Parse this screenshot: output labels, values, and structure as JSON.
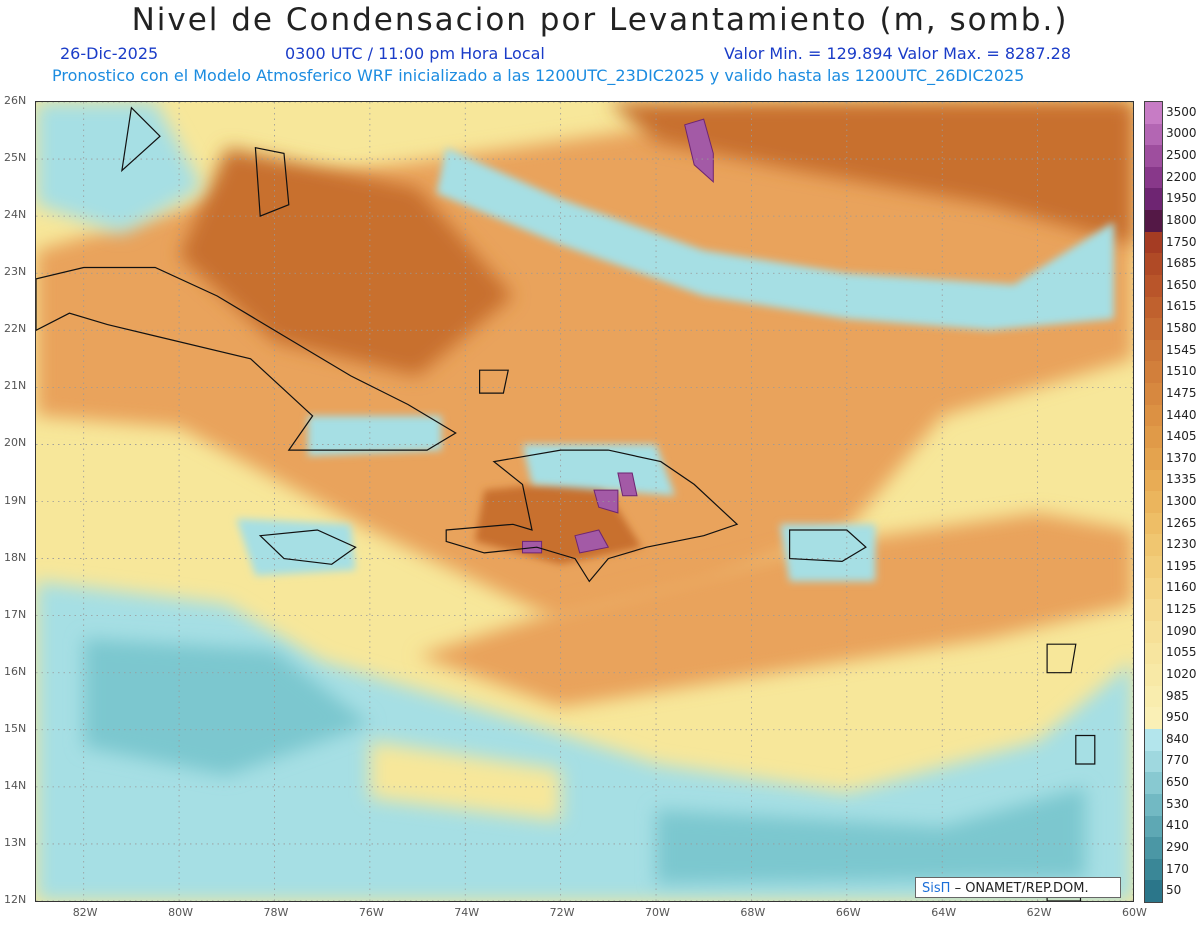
{
  "header": {
    "title": "Nivel de Condensacion por Levantamiento (m, somb.)",
    "date": "26-Dic-2025",
    "time": "0300 UTC / 11:00 pm Hora Local",
    "min_max": "Valor Min. = 129.894  Valor Max. = 8287.28",
    "model_info": "Pronostico con el Modelo Atmosferico WRF inicializado a las 1200UTC_23DIC2025 y valido hasta las  1200UTC_26DIC2025"
  },
  "map": {
    "lat_labels": [
      "26N",
      "25N",
      "24N",
      "23N",
      "22N",
      "21N",
      "20N",
      "19N",
      "18N",
      "17N",
      "16N",
      "15N",
      "14N",
      "13N",
      "12N"
    ],
    "lon_labels": [
      "82W",
      "80W",
      "78W",
      "76W",
      "74W",
      "72W",
      "70W",
      "68W",
      "66W",
      "64W",
      "62W",
      "60W"
    ],
    "colors": {
      "ocean_low": "#a6dfe4",
      "ocean_mid": "#7cc7cf",
      "yellow": "#f7e79a",
      "orange": "#e9a35c",
      "brown": "#c8702f",
      "purple": "#a35aa6",
      "coast": "#111111"
    }
  },
  "colorbar": {
    "labels": [
      "3500",
      "3000",
      "2500",
      "2200",
      "1950",
      "1800",
      "1750",
      "1685",
      "1650",
      "1615",
      "1580",
      "1545",
      "1510",
      "1475",
      "1440",
      "1405",
      "1370",
      "1335",
      "1300",
      "1265",
      "1230",
      "1195",
      "1160",
      "1125",
      "1090",
      "1055",
      "1020",
      "985",
      "950",
      "840",
      "770",
      "650",
      "530",
      "410",
      "290",
      "170",
      "50"
    ],
    "colors": [
      "#c77cc5",
      "#b366b3",
      "#9e4e9e",
      "#88388a",
      "#6e2572",
      "#541846",
      "#a53c23",
      "#b04a26",
      "#b9552a",
      "#c0612e",
      "#c66c33",
      "#cc7637",
      "#d27f3b",
      "#d7883f",
      "#dc9143",
      "#e09a48",
      "#e4a34e",
      "#e8ac55",
      "#ebb55d",
      "#eebe66",
      "#f0c670",
      "#f2cd7a",
      "#f4d484",
      "#f5da8e",
      "#f6e097",
      "#f7e59f",
      "#f8e9a6",
      "#f9edae",
      "#faf0b6",
      "#b3e5ec",
      "#9fd8df",
      "#88c9d1",
      "#72b9c3",
      "#5ea8b4",
      "#4b97a5",
      "#3a8797",
      "#2b768a"
    ]
  },
  "credit": {
    "logo": "SisΠ",
    "org": "– ONAMET/REP.DOM."
  }
}
